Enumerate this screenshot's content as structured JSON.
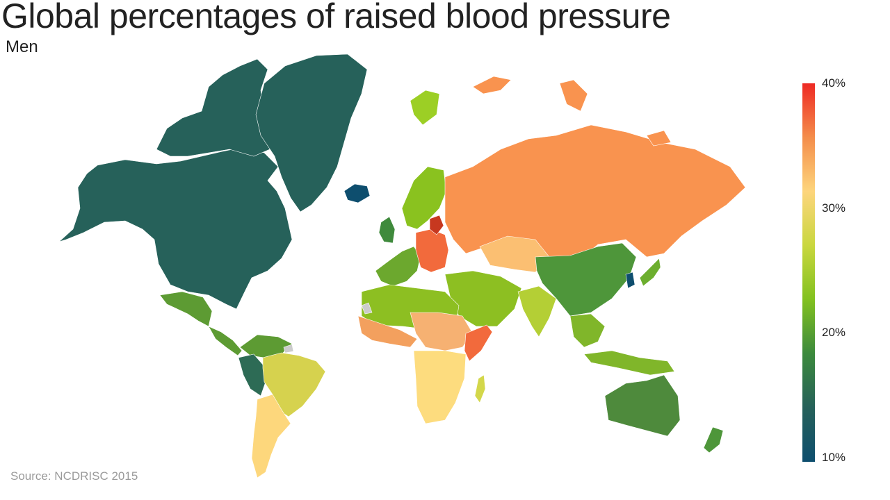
{
  "header": {
    "title": "Global percentages of raised blood pressure",
    "subtitle": "Men"
  },
  "legend": {
    "labels": [
      "40%",
      "30%",
      "20%",
      "10%"
    ],
    "gradient": [
      "#ee2a24",
      "#f48d4b",
      "#fdd57c",
      "#c9d73e",
      "#82c11f",
      "#3c8a3d",
      "#26615a",
      "#0e4e6e"
    ]
  },
  "colors": {
    "north_america": "#26615a",
    "greenland": "#26615a",
    "iceland": "#0e4e6e",
    "russia": "#f9934f",
    "kazakhstan": "#fbbf72",
    "china": "#4e963a",
    "india": "#b4cf35",
    "europe_east": "#f26a3c",
    "baltics": "#c7381f",
    "europe_west": "#6ca82e",
    "scandinavia": "#8ac21f",
    "uk": "#3f8a3c",
    "middle_east": "#8dbf22",
    "north_africa": "#8dbf22",
    "west_africa": "#f3a05e",
    "sahel": "#f6b172",
    "southern_africa": "#fddc7e",
    "madagascar": "#d3d74a",
    "australia": "#4e8a3c",
    "new_zealand": "#4e963a",
    "brazil": "#d6d24e",
    "argentina": "#fdd77c",
    "peru": "#2d6b55",
    "central_america": "#5d9b33",
    "mexico": "#5d9b33",
    "se_asia": "#80b62a",
    "japan": "#6cae2e",
    "korea": "#0e4e6e",
    "somalia": "#f26a3c",
    "svalbard": "#9ccf25",
    "missing": "#cccccc"
  },
  "source": "Source: NCDRISC 2015"
}
